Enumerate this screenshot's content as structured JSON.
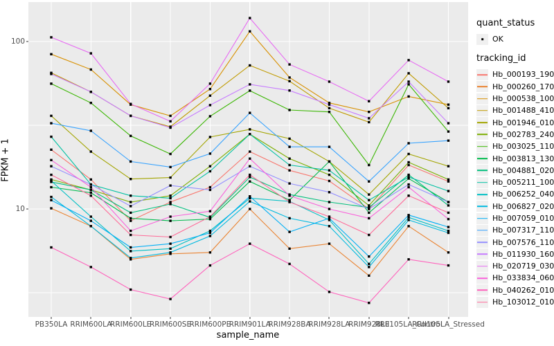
{
  "chart_data": {
    "type": "line",
    "xlabel": "sample_name",
    "ylabel": "FPKM + 1",
    "yscale": "log10",
    "ylim": [
      2.4,
      160
    ],
    "grid": "on",
    "yticks": [
      {
        "label": "10",
        "value": 10
      },
      {
        "label": "100",
        "value": 100
      }
    ],
    "yminor": [
      3.1623,
      31.623
    ],
    "categories": [
      "PB350LA",
      "RRIM600LA",
      "RRIM600LE",
      "RRIM600SE",
      "RRIM600PE",
      "RRIM901LA",
      "RRIM928BA",
      "RRIM928LA",
      "RRIM928LE",
      "RRII105LA_Control",
      "RRII105LA_Stressed"
    ],
    "legend": {
      "quant_title": "quant_status",
      "quant_items": [
        {
          "label": "OK",
          "marker_color": "#000000",
          "marker_shape": "square"
        }
      ],
      "series_title": "tracking_id",
      "position": "right"
    },
    "series": [
      {
        "name": "Hb_000193_190",
        "color": "#F8766D",
        "values": [
          22.6,
          15.0,
          8.5,
          11.0,
          13.5,
          22.0,
          17.0,
          14.7,
          10.0,
          18.3,
          14.6
        ]
      },
      {
        "name": "Hb_000260_170",
        "color": "#EA8331",
        "values": [
          10.1,
          7.9,
          5.0,
          5.4,
          5.5,
          10.0,
          5.8,
          6.2,
          4.0,
          7.9,
          5.5
        ]
      },
      {
        "name": "Hb_000538_100",
        "color": "#D89000",
        "values": [
          84,
          68,
          42,
          36,
          52,
          115,
          61,
          43,
          38,
          47,
          42
        ]
      },
      {
        "name": "Hb_001488_410",
        "color": "#C09B00",
        "values": [
          65,
          50,
          36,
          31,
          47.5,
          72,
          58,
          40,
          33,
          64.6,
          40
        ]
      },
      {
        "name": "Hb_001946_010",
        "color": "#A3A500",
        "values": [
          36,
          22,
          15.1,
          15.4,
          26.9,
          29.9,
          26.3,
          19.2,
          12.2,
          21.3,
          18
        ]
      },
      {
        "name": "Hb_002783_240",
        "color": "#7CAE00",
        "values": [
          15,
          13,
          11,
          12,
          18,
          28,
          20,
          16,
          10.5,
          19,
          15
        ]
      },
      {
        "name": "Hb_003025_110",
        "color": "#39B600",
        "values": [
          56,
          43,
          27.3,
          21.3,
          35.8,
          50.9,
          39,
          38,
          18.3,
          55.5,
          29
        ]
      },
      {
        "name": "Hb_003813_130",
        "color": "#00BB4E",
        "values": [
          13.5,
          12.5,
          8.8,
          8.5,
          8.7,
          14.6,
          11.3,
          19.2,
          9.5,
          15.2,
          11
        ]
      },
      {
        "name": "Hb_004881_020",
        "color": "#00BF7D",
        "values": [
          14.5,
          13,
          9.5,
          10.7,
          8.9,
          15.5,
          12.2,
          11,
          10.2,
          16,
          10.5
        ]
      },
      {
        "name": "Hb_005211_100",
        "color": "#00C1A3",
        "values": [
          27,
          14,
          12,
          11.6,
          16.8,
          28,
          18.3,
          17,
          11.3,
          15.5,
          12.8
        ]
      },
      {
        "name": "Hb_006252_040",
        "color": "#00BFC4",
        "values": [
          14.7,
          9.0,
          5.6,
          5.8,
          7.4,
          11.6,
          11.1,
          8.6,
          4.7,
          8.9,
          7.4
        ]
      },
      {
        "name": "Hb_006827_020",
        "color": "#00BAE0",
        "values": [
          11.8,
          7.9,
          5.1,
          5.5,
          6.9,
          11.1,
          8.8,
          7.9,
          4.5,
          8.6,
          7.2
        ]
      },
      {
        "name": "Hb_007059_010",
        "color": "#00B0F6",
        "values": [
          11.3,
          8.5,
          5.9,
          6.2,
          7.2,
          11.9,
          7.3,
          8.8,
          5.2,
          9.2,
          7.8
        ]
      },
      {
        "name": "Hb_007317_110",
        "color": "#35A2FF",
        "values": [
          32.5,
          29.3,
          19.2,
          17.8,
          21.4,
          37.5,
          23.5,
          23.5,
          14.6,
          24.7,
          25.6
        ]
      },
      {
        "name": "Hb_007576_110",
        "color": "#9590FF",
        "values": [
          18,
          14,
          10.4,
          13.8,
          13,
          18,
          14.2,
          12.6,
          10,
          14,
          11
        ]
      },
      {
        "name": "Hb_011930_160",
        "color": "#C77CFF",
        "values": [
          64,
          50,
          36,
          30.6,
          41.7,
          55.5,
          51,
          42,
          34.8,
          57.6,
          32.5
        ]
      },
      {
        "name": "Hb_020719_030",
        "color": "#E76BF3",
        "values": [
          106,
          85,
          42.4,
          33.4,
          56,
          138,
          73,
          57.6,
          44,
          77.4,
          57.6
        ]
      },
      {
        "name": "Hb_033834_060",
        "color": "#FA62DB",
        "values": [
          19.6,
          13.5,
          7.4,
          9,
          9.7,
          20,
          12,
          10,
          8.8,
          13.5,
          8.7
        ]
      },
      {
        "name": "Hb_040262_010",
        "color": "#FF62BC",
        "values": [
          5.9,
          4.5,
          3.3,
          2.9,
          4.6,
          6.2,
          4.7,
          3.2,
          2.75,
          5.0,
          4.6
        ]
      },
      {
        "name": "Hb_103012_010",
        "color": "#FF6A98",
        "values": [
          16,
          12,
          7,
          6.8,
          9,
          16,
          11,
          9,
          7,
          12,
          9.5
        ]
      }
    ],
    "style": {
      "panel_bg": "#EBEBEB",
      "grid_color": "#FFFFFF",
      "point_color": "#000000",
      "tick_label_color": "#4D4D4D"
    }
  }
}
